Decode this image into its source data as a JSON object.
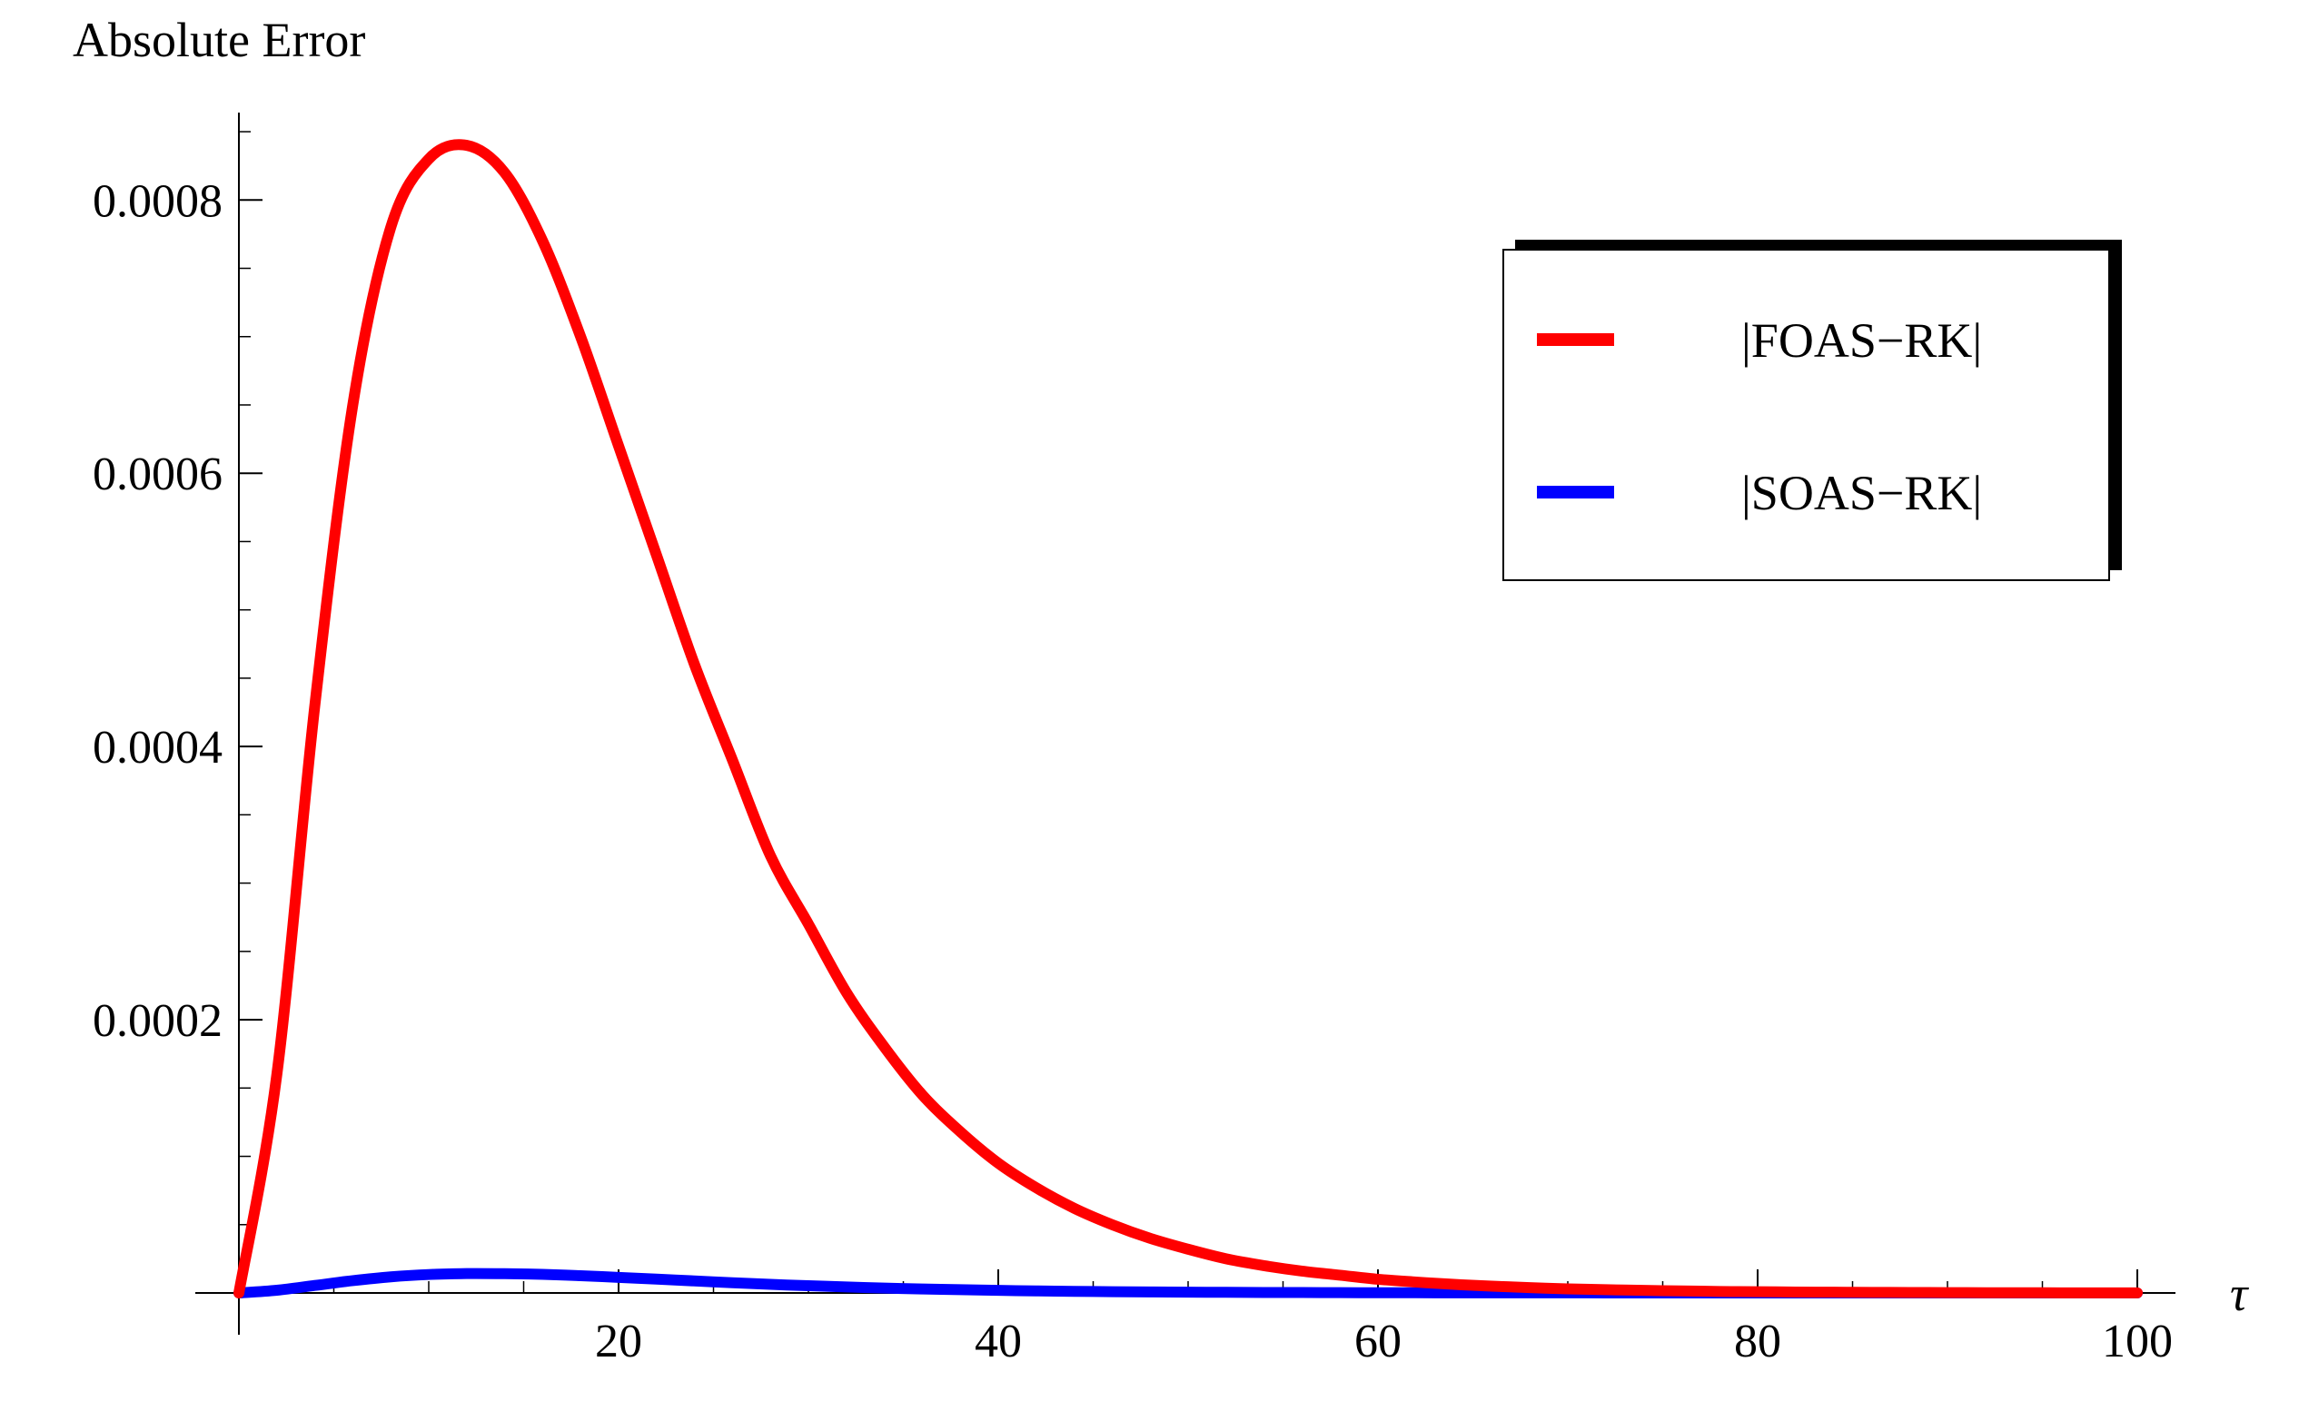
{
  "chart_data": {
    "type": "line",
    "title": "",
    "ylabel": "Absolute Error",
    "xlabel": "τ",
    "xlim": [
      0,
      100
    ],
    "ylim": [
      0,
      0.00086
    ],
    "x_ticks": [
      20,
      40,
      60,
      80,
      100
    ],
    "x_tick_labels": [
      "20",
      "40",
      "60",
      "80",
      "100"
    ],
    "y_ticks": [
      0.0002,
      0.0004,
      0.0006,
      0.0008
    ],
    "y_tick_labels": [
      "0.0002",
      "0.0004",
      "0.0006",
      "0.0008"
    ],
    "grid": false,
    "legend_position": "top-right",
    "x": [
      0,
      2,
      4,
      6,
      8,
      10,
      12,
      14,
      16,
      18,
      20,
      22,
      24,
      26,
      28,
      30,
      32,
      34,
      36,
      38,
      40,
      42,
      44,
      46,
      48,
      50,
      52,
      54,
      56,
      58,
      60,
      62,
      64,
      66,
      68,
      70,
      72,
      74,
      76,
      78,
      80,
      82,
      84,
      86,
      88,
      90,
      92,
      94,
      96,
      98,
      100
    ],
    "series": [
      {
        "name": "|FOAS−RK|",
        "color": "#ff0000",
        "values": [
          0,
          0.00016,
          0.00043,
          0.00065,
          0.00078,
          0.00083,
          0.00084,
          0.00082,
          0.00077,
          0.0007,
          0.00062,
          0.00054,
          0.00046,
          0.00039,
          0.00032,
          0.00027,
          0.00022,
          0.00018,
          0.000145,
          0.000118,
          9.5e-05,
          7.7e-05,
          6.2e-05,
          5e-05,
          4e-05,
          3.2e-05,
          2.5e-05,
          2e-05,
          1.6e-05,
          1.3e-05,
          1e-05,
          8e-06,
          6.3e-06,
          5e-06,
          3.9e-06,
          3e-06,
          2.4e-06,
          1.9e-06,
          1.5e-06,
          1.1e-06,
          9e-07,
          7e-07,
          5.5e-07,
          4.3e-07,
          3.3e-07,
          2.6e-07,
          2e-07,
          1.5e-07,
          1.2e-07,
          9e-08,
          7e-08
        ]
      },
      {
        "name": "|SOAS−RK|",
        "color": "#0000ff",
        "values": [
          0,
          2e-06,
          5.5e-06,
          9e-06,
          1.18e-05,
          1.35e-05,
          1.42e-05,
          1.41e-05,
          1.36e-05,
          1.26e-05,
          1.14e-05,
          1.01e-05,
          8.8e-06,
          7.5e-06,
          6.3e-06,
          5.3e-06,
          4.4e-06,
          3.6e-06,
          2.9e-06,
          2.4e-06,
          1.9e-06,
          1.5e-06,
          1.2e-06,
          9.5e-07,
          7.5e-07,
          6e-07,
          4.7e-07,
          3.7e-07,
          2.9e-07,
          2.3e-07,
          1.8e-07,
          1.4e-07,
          1.1e-07,
          9e-08,
          7e-08,
          5e-08,
          4e-08,
          3e-08,
          2e-08,
          2e-08,
          1e-08,
          1e-08,
          1e-08,
          0,
          0,
          0,
          0,
          0,
          0,
          0,
          0
        ]
      }
    ]
  }
}
